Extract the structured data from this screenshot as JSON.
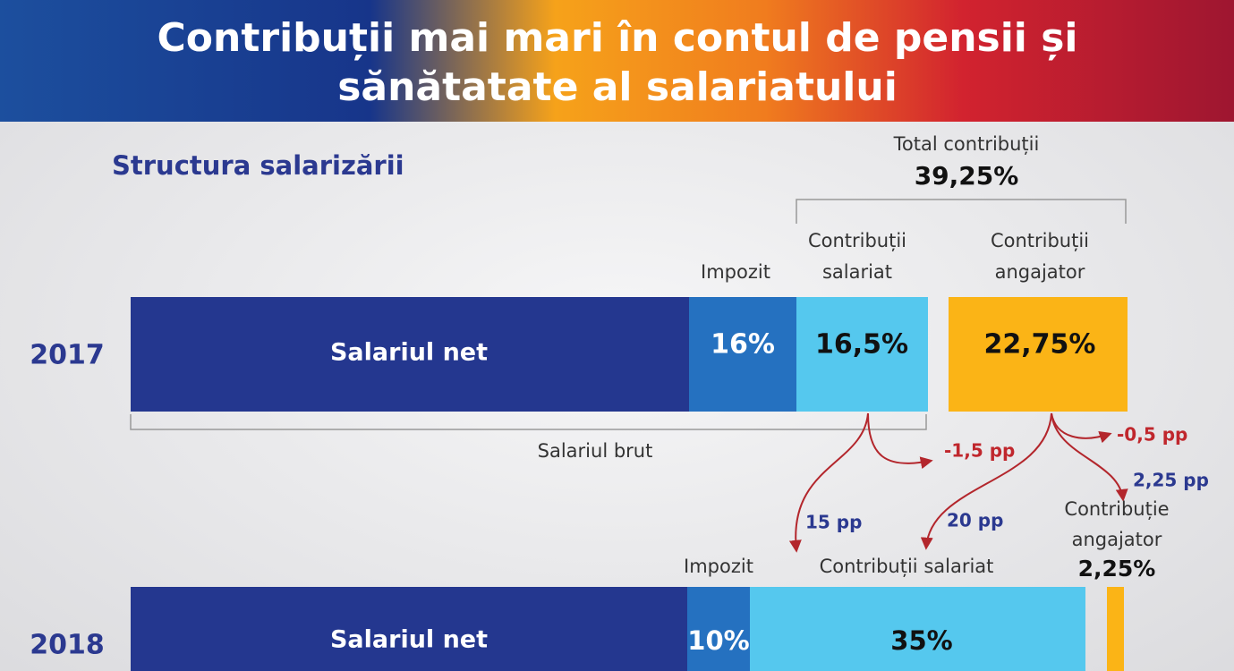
{
  "header": {
    "title_lines": [
      "Contribuții mai mari în contul de pensii și",
      "sănătatate al salariatului"
    ]
  },
  "subtitle": "Structura salarizării",
  "total": {
    "label": "Total contribuții",
    "value": "39,25%"
  },
  "rows": [
    {
      "year": "2017",
      "headers": {
        "impozit": "Impozit",
        "salariat": [
          "Contribuții",
          "salariat"
        ],
        "angajator": [
          "Contribuții",
          "angajator"
        ]
      },
      "segments": {
        "net": "Salariul net",
        "impozit": "16%",
        "salariat": "16,5%",
        "angajator": "22,75%"
      },
      "brut": "Salariul brut"
    },
    {
      "year": "2018",
      "headers": {
        "impozit": "Impozit",
        "salariat": "Contribuții salariat",
        "angajator": [
          "Contribuție",
          "angajator"
        ],
        "angajator_value": "2,25%"
      },
      "segments": {
        "net": "Salariul net",
        "impozit": "10%",
        "salariat": "35%"
      }
    }
  ],
  "changes": {
    "salariat_drop": "-1,5 pp",
    "salariat_new": "15 pp",
    "angajator_drop": "-0,5 pp",
    "angajator_to_salariat": "20 pp",
    "angajator_new": "2,25 pp"
  }
}
